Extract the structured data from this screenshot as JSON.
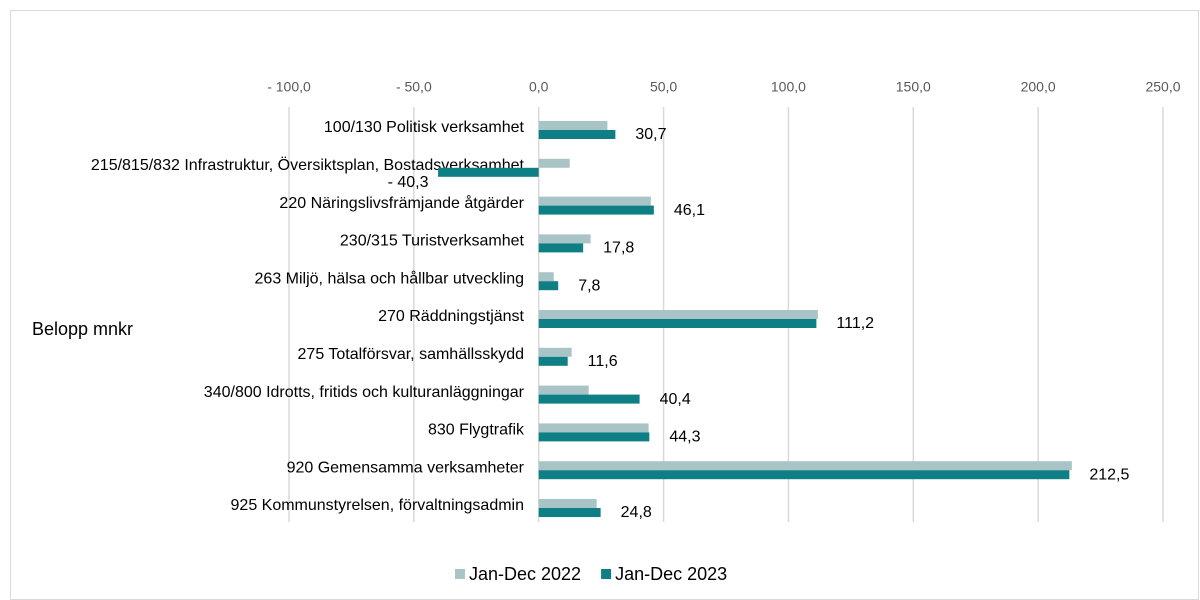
{
  "chart_data": {
    "type": "bar",
    "orientation": "horizontal",
    "y_axis_label": "Belopp mnkr",
    "categories": [
      "100/130 Politisk verksamhet",
      "215/815/832 Infrastruktur, Översiktsplan, Bostadsverksamhet",
      "220 Näringslivsfrämjande åtgärder",
      "230/315 Turistverksamhet",
      "263 Miljö, hälsa och hållbar utveckling",
      "270 Räddningstjänst",
      "275 Totalförsvar, samhällsskydd",
      "340/800 Idrotts, fritids och kulturanläggningar",
      "830 Flygtrafik",
      "920 Gemensamma verksamheter",
      "925 Kommunstyrelsen, förvaltningsadmin"
    ],
    "series": [
      {
        "name": "Jan-Dec 2022",
        "color": "#a9c4c6",
        "values": [
          27.5,
          12.4,
          44.9,
          20.8,
          6,
          111.8,
          13.2,
          20,
          44,
          213.5,
          23.2
        ]
      },
      {
        "name": "Jan-Dec 2023",
        "color": "#0f7f86",
        "values": [
          30.7,
          -40.3,
          46.1,
          17.8,
          7.8,
          111.2,
          11.6,
          40.4,
          44.3,
          212.5,
          24.8
        ],
        "value_labels": [
          "30,7",
          "- 40,3",
          "46,1",
          "17,8",
          "7,8",
          "111,2",
          "11,6",
          "40,4",
          "44,3",
          "212,5",
          "24,8"
        ]
      }
    ],
    "xlim": [
      -100,
      250
    ],
    "xticks": [
      {
        "value": -100,
        "label": "- 100,0"
      },
      {
        "value": -50,
        "label": "- 50,0"
      },
      {
        "value": 0,
        "label": "0,0"
      },
      {
        "value": 50,
        "label": "50,0"
      },
      {
        "value": 100,
        "label": "100,0"
      },
      {
        "value": 150,
        "label": "150,0"
      },
      {
        "value": 200,
        "label": "200,0"
      },
      {
        "value": 250,
        "label": "250,0"
      }
    ],
    "grid": true,
    "legend": "bottom"
  }
}
